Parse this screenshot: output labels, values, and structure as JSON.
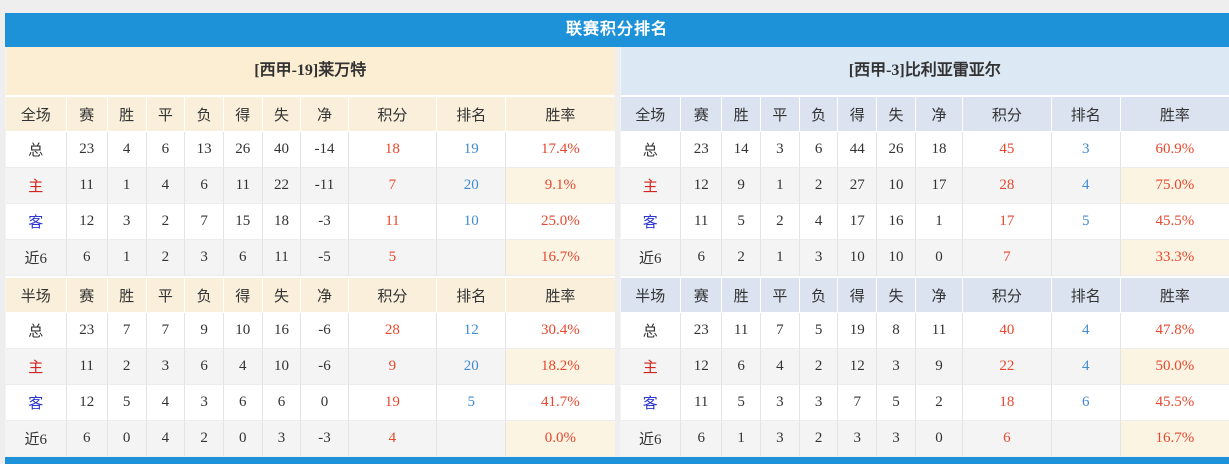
{
  "title": "联赛积分排名",
  "table_headers": [
    "赛",
    "胜",
    "平",
    "负",
    "得",
    "失",
    "净",
    "积分",
    "排名",
    "胜率"
  ],
  "panels": [
    {
      "team": "[西甲-19]莱万特",
      "tables": [
        {
          "scope": "全场",
          "rows": [
            {
              "label": "总",
              "stats": [
                "23",
                "4",
                "6",
                "13",
                "26",
                "40",
                "-14"
              ],
              "points": "18",
              "rank": "19",
              "win_rate": "17.4%"
            },
            {
              "label": "主",
              "stats": [
                "11",
                "1",
                "4",
                "6",
                "11",
                "22",
                "-11"
              ],
              "points": "7",
              "rank": "20",
              "win_rate": "9.1%"
            },
            {
              "label": "客",
              "stats": [
                "12",
                "3",
                "2",
                "7",
                "15",
                "18",
                "-3"
              ],
              "points": "11",
              "rank": "10",
              "win_rate": "25.0%"
            },
            {
              "label": "近6",
              "stats": [
                "6",
                "1",
                "2",
                "3",
                "6",
                "11",
                "-5"
              ],
              "points": "5",
              "rank": "",
              "win_rate": "16.7%"
            }
          ]
        },
        {
          "scope": "半场",
          "rows": [
            {
              "label": "总",
              "stats": [
                "23",
                "7",
                "7",
                "9",
                "10",
                "16",
                "-6"
              ],
              "points": "28",
              "rank": "12",
              "win_rate": "30.4%"
            },
            {
              "label": "主",
              "stats": [
                "11",
                "2",
                "3",
                "6",
                "4",
                "10",
                "-6"
              ],
              "points": "9",
              "rank": "20",
              "win_rate": "18.2%"
            },
            {
              "label": "客",
              "stats": [
                "12",
                "5",
                "4",
                "3",
                "6",
                "6",
                "0"
              ],
              "points": "19",
              "rank": "5",
              "win_rate": "41.7%"
            },
            {
              "label": "近6",
              "stats": [
                "6",
                "0",
                "4",
                "2",
                "0",
                "3",
                "-3"
              ],
              "points": "4",
              "rank": "",
              "win_rate": "0.0%"
            }
          ]
        }
      ]
    },
    {
      "team": "[西甲-3]比利亚雷亚尔",
      "tables": [
        {
          "scope": "全场",
          "rows": [
            {
              "label": "总",
              "stats": [
                "23",
                "14",
                "3",
                "6",
                "44",
                "26",
                "18"
              ],
              "points": "45",
              "rank": "3",
              "win_rate": "60.9%"
            },
            {
              "label": "主",
              "stats": [
                "12",
                "9",
                "1",
                "2",
                "27",
                "10",
                "17"
              ],
              "points": "28",
              "rank": "4",
              "win_rate": "75.0%"
            },
            {
              "label": "客",
              "stats": [
                "11",
                "5",
                "2",
                "4",
                "17",
                "16",
                "1"
              ],
              "points": "17",
              "rank": "5",
              "win_rate": "45.5%"
            },
            {
              "label": "近6",
              "stats": [
                "6",
                "2",
                "1",
                "3",
                "10",
                "10",
                "0"
              ],
              "points": "7",
              "rank": "",
              "win_rate": "33.3%"
            }
          ]
        },
        {
          "scope": "半场",
          "rows": [
            {
              "label": "总",
              "stats": [
                "23",
                "11",
                "7",
                "5",
                "19",
                "8",
                "11"
              ],
              "points": "40",
              "rank": "4",
              "win_rate": "47.8%"
            },
            {
              "label": "主",
              "stats": [
                "12",
                "6",
                "4",
                "2",
                "12",
                "3",
                "9"
              ],
              "points": "22",
              "rank": "4",
              "win_rate": "50.0%"
            },
            {
              "label": "客",
              "stats": [
                "11",
                "5",
                "3",
                "3",
                "7",
                "5",
                "2"
              ],
              "points": "18",
              "rank": "6",
              "win_rate": "45.5%"
            },
            {
              "label": "近6",
              "stats": [
                "6",
                "1",
                "3",
                "2",
                "3",
                "3",
                "0"
              ],
              "points": "6",
              "rank": "",
              "win_rate": "16.7%"
            }
          ]
        }
      ]
    }
  ],
  "colors": {
    "accent_blue": "#1e92d8",
    "left_theme_beige": "#fbeed2",
    "right_theme_blue": "#dce8f4",
    "points_red": "#e6482e",
    "rank_blue": "#418bd2",
    "home_label_red": "#d2251e",
    "away_label_blue": "#2b36ce"
  }
}
